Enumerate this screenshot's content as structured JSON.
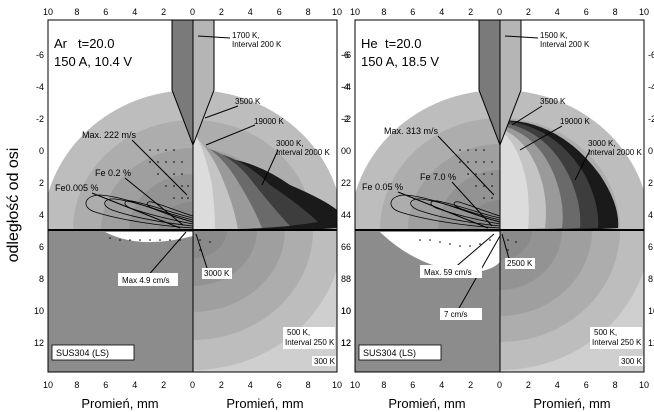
{
  "y_axis_label": "odległość od osi",
  "x_axis_label": "Promień, mm",
  "top_ticks": [
    "10",
    "8",
    "6",
    "4",
    "2",
    "0",
    "2",
    "4",
    "6",
    "8",
    "10"
  ],
  "bottom_ticks": [
    "10",
    "8",
    "6",
    "4",
    "2",
    "0",
    "2",
    "4",
    "6",
    "8",
    "10"
  ],
  "left_ticks": [
    "-6",
    "-4",
    "-2",
    "0",
    "2",
    "4",
    "6",
    "8",
    "10",
    "12"
  ],
  "right_ticks": [
    "-6",
    "-4",
    "-2",
    "0",
    "2",
    "4",
    "6",
    "8",
    "10",
    "12"
  ],
  "panels": [
    {
      "gas": "Ar",
      "time": "t=20.0",
      "params": "150 A, 10.4 V",
      "material": "SUS304 (LS)",
      "labels": {
        "electrode_temp": "1700 K,",
        "electrode_interval": "Interval 200 K",
        "t3500": "3500 K",
        "t19000": "19000 K",
        "t3000": "3000 K,",
        "t3000_interval": "Interval 2000 K",
        "max_arc": "Max. 222 m/s",
        "fe_high": "Fe 0.2 %",
        "fe_low": "Fe0.005 %",
        "max_pool": "Max 4.9 cm/s",
        "pool_temp": "3000 K",
        "solid_temp": "500 K,",
        "solid_interval": "Interval 250 K",
        "solid_min": "300 K"
      }
    },
    {
      "gas": "He",
      "time": "t=20.0",
      "params": "150 A, 18.5 V",
      "material": "SUS304 (LS)",
      "labels": {
        "electrode_temp": "1500 K,",
        "electrode_interval": "Interval 200 K",
        "t3500": "3500 K",
        "t19000": "19000 K",
        "t3000": "3000 K,",
        "t3000_interval": "Interval 2000 K",
        "max_arc": "Max. 313 m/s",
        "fe_high": "Fe 7.0 %",
        "fe_low": "Fe 0.05 %",
        "max_pool": "Max. 59 cm/s",
        "pool_temp": "2500 K",
        "solid_temp": "500 K,",
        "solid_interval": "Interval 250 K",
        "solid_min": "300 K",
        "pool_vel": "7 cm/s"
      }
    }
  ],
  "colors": {
    "background": "#ffffff",
    "solid_gray": "#8c8c8c",
    "electrode_gray": "#7a7a7a",
    "arc_dark": "#1a1a1a"
  }
}
